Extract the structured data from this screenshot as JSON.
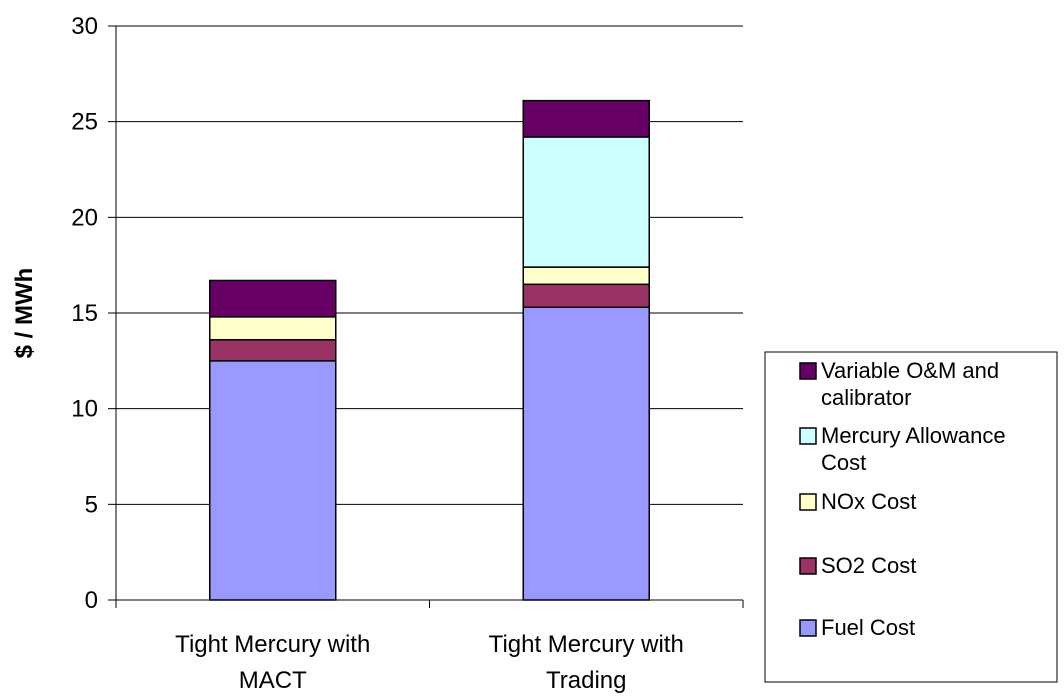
{
  "chart_data": {
    "type": "bar",
    "stacked": true,
    "title": "",
    "xlabel": "",
    "ylabel": "$ / MWh",
    "ylim": [
      0,
      30
    ],
    "yticks": [
      0,
      5,
      10,
      15,
      20,
      25,
      30
    ],
    "grid": true,
    "legend_position": "right",
    "categories": [
      [
        "Tight Mercury with",
        "MACT"
      ],
      [
        "Tight Mercury with",
        "Trading"
      ]
    ],
    "series": [
      {
        "name": "Fuel Cost",
        "color": "#9999FF",
        "values": [
          12.5,
          15.3
        ]
      },
      {
        "name": "SO2 Cost",
        "color": "#993366",
        "values": [
          1.1,
          1.2
        ]
      },
      {
        "name": "NOx Cost",
        "color": "#FFFFCC",
        "values": [
          1.2,
          0.9
        ]
      },
      {
        "name": "Mercury Allowance Cost",
        "color": "#CCFFFF",
        "values": [
          0.0,
          6.8
        ]
      },
      {
        "name": "Variable O&M and calibrator",
        "color": "#660066",
        "values": [
          1.9,
          1.9
        ]
      }
    ],
    "legend": [
      {
        "lines": [
          "Variable O&M and",
          "calibrator"
        ],
        "color": "#660066"
      },
      {
        "lines": [
          "Mercury Allowance",
          "Cost"
        ],
        "color": "#CCFFFF"
      },
      {
        "lines": [
          "NOx Cost"
        ],
        "color": "#FFFFCC"
      },
      {
        "lines": [
          "SO2 Cost"
        ],
        "color": "#993366"
      },
      {
        "lines": [
          "Fuel Cost"
        ],
        "color": "#9999FF"
      }
    ]
  }
}
